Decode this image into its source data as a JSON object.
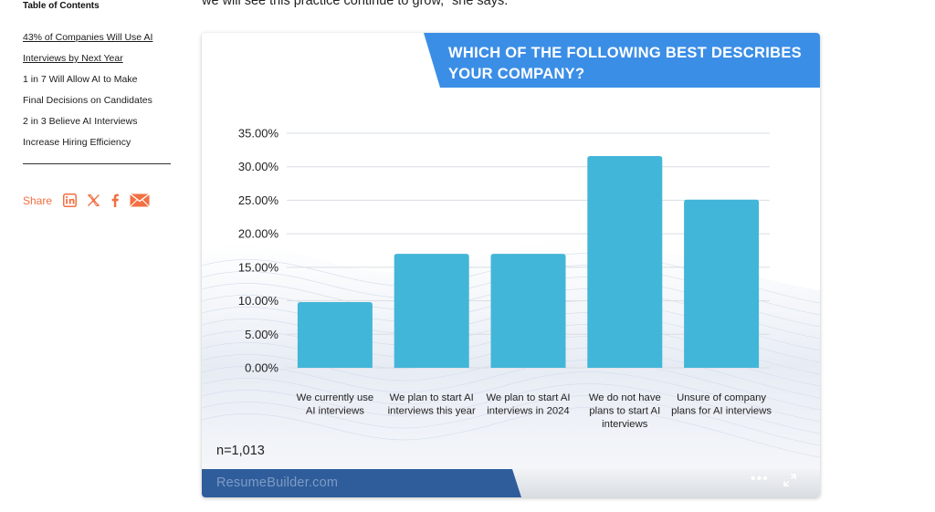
{
  "toc": {
    "title": "Table of Contents",
    "items": [
      {
        "line1": "43% of Companies Will Use AI",
        "line2": "Interviews by Next Year"
      },
      {
        "line1": "1 in 7 Will Allow AI to Make",
        "line2": "Final Decisions on Candidates"
      },
      {
        "line1": "2 in 3 Believe AI Interviews",
        "line2": "Increase Hiring Efficiency"
      }
    ]
  },
  "share": {
    "label": "Share",
    "icons": [
      "linkedin-icon",
      "x-icon",
      "facebook-icon",
      "email-icon"
    ],
    "color": "#f26f42"
  },
  "article": {
    "text": "we will see this practice continue to grow,” she says."
  },
  "card": {
    "title_line1": "WHICH OF THE FOLLOWING BEST DESCRIBES",
    "title_line2": "YOUR COMPANY?",
    "sample": "n=1,013",
    "brand": "ResumeBuilder.com",
    "more_label": "•••",
    "colors": {
      "title_bg": "#3b8ee6",
      "bar": "#42b6d8",
      "footer_band": "#2f5d9b"
    }
  },
  "chart_data": {
    "type": "bar",
    "title": "WHICH OF THE FOLLOWING BEST DESCRIBES YOUR COMPANY?",
    "categories": [
      [
        "We currently use",
        "AI interviews"
      ],
      [
        "We plan to start AI",
        "interviews this year"
      ],
      [
        "We plan to start AI",
        "interviews in 2024"
      ],
      [
        "We do not have",
        "plans to start AI",
        "interviews"
      ],
      [
        "Unsure of company",
        "plans for AI interviews"
      ]
    ],
    "values": [
      9.8,
      17.0,
      17.0,
      31.6,
      25.1
    ],
    "ylim": [
      0,
      35
    ],
    "yticks": [
      "0.00%",
      "5.00%",
      "10.00%",
      "15.00%",
      "20.00%",
      "25.00%",
      "30.00%",
      "35.00%"
    ],
    "grid": true
  }
}
